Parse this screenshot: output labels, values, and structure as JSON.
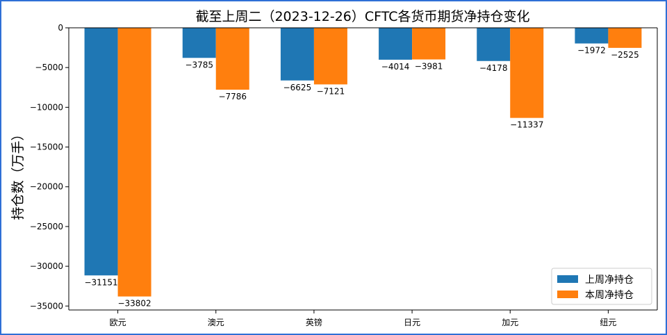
{
  "chart_data": {
    "type": "bar",
    "title": "截至上周二（2023-12-26）CFTC各货币期货净持仓变化",
    "xlabel": "",
    "ylabel": "持仓数（万手）",
    "categories": [
      "欧元",
      "澳元",
      "英镑",
      "日元",
      "加元",
      "纽元"
    ],
    "series": [
      {
        "name": "上周净持仓",
        "color": "#1f77b4",
        "values": [
          -31151,
          -3785,
          -6625,
          -4014,
          -4178,
          -1972
        ]
      },
      {
        "name": "本周净持仓",
        "color": "#ff7f0e",
        "values": [
          -33802,
          -7786,
          -7121,
          -3981,
          -11337,
          -2525
        ]
      }
    ],
    "ylim": [
      -35500,
      0
    ],
    "yticks": [
      0,
      -5000,
      -10000,
      -15000,
      -20000,
      -25000,
      -30000,
      -35000
    ],
    "grid": false,
    "legend_position": "bottom-right",
    "data_labels": true
  }
}
